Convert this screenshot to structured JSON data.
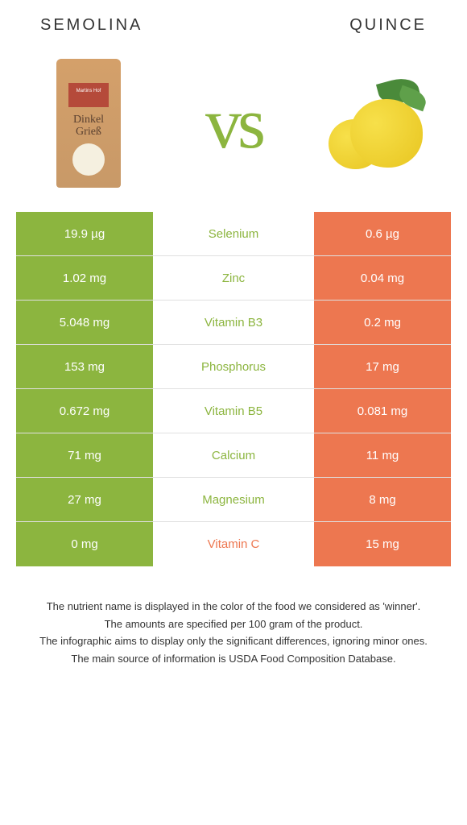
{
  "header": {
    "left_title": "SEMOLINA",
    "right_title": "QUINCE",
    "vs": "vs",
    "bag_brand": "Martins Hof",
    "bag_text1": "Dinkel",
    "bag_text2": "Grieß"
  },
  "colors": {
    "left": "#8cb53f",
    "right": "#ed7750",
    "bag": "#d4a06a",
    "bag_label": "#b54a3a",
    "quince": "#e8c520",
    "leaf": "#4a8a3a"
  },
  "rows": [
    {
      "left": "19.9 µg",
      "label": "Selenium",
      "right": "0.6 µg",
      "winner": "left"
    },
    {
      "left": "1.02 mg",
      "label": "Zinc",
      "right": "0.04 mg",
      "winner": "left"
    },
    {
      "left": "5.048 mg",
      "label": "Vitamin B3",
      "right": "0.2 mg",
      "winner": "left"
    },
    {
      "left": "153 mg",
      "label": "Phosphorus",
      "right": "17 mg",
      "winner": "left"
    },
    {
      "left": "0.672 mg",
      "label": "Vitamin B5",
      "right": "0.081 mg",
      "winner": "left"
    },
    {
      "left": "71 mg",
      "label": "Calcium",
      "right": "11 mg",
      "winner": "left"
    },
    {
      "left": "27 mg",
      "label": "Magnesium",
      "right": "8 mg",
      "winner": "left"
    },
    {
      "left": "0 mg",
      "label": "Vitamin C",
      "right": "15 mg",
      "winner": "right"
    }
  ],
  "footer": [
    "The nutrient name is displayed in the color of the food we considered as 'winner'.",
    "The amounts are specified per 100 gram of the product.",
    "The infographic aims to display only the significant differences, ignoring minor ones.",
    "The main source of information is USDA Food Composition Database."
  ]
}
